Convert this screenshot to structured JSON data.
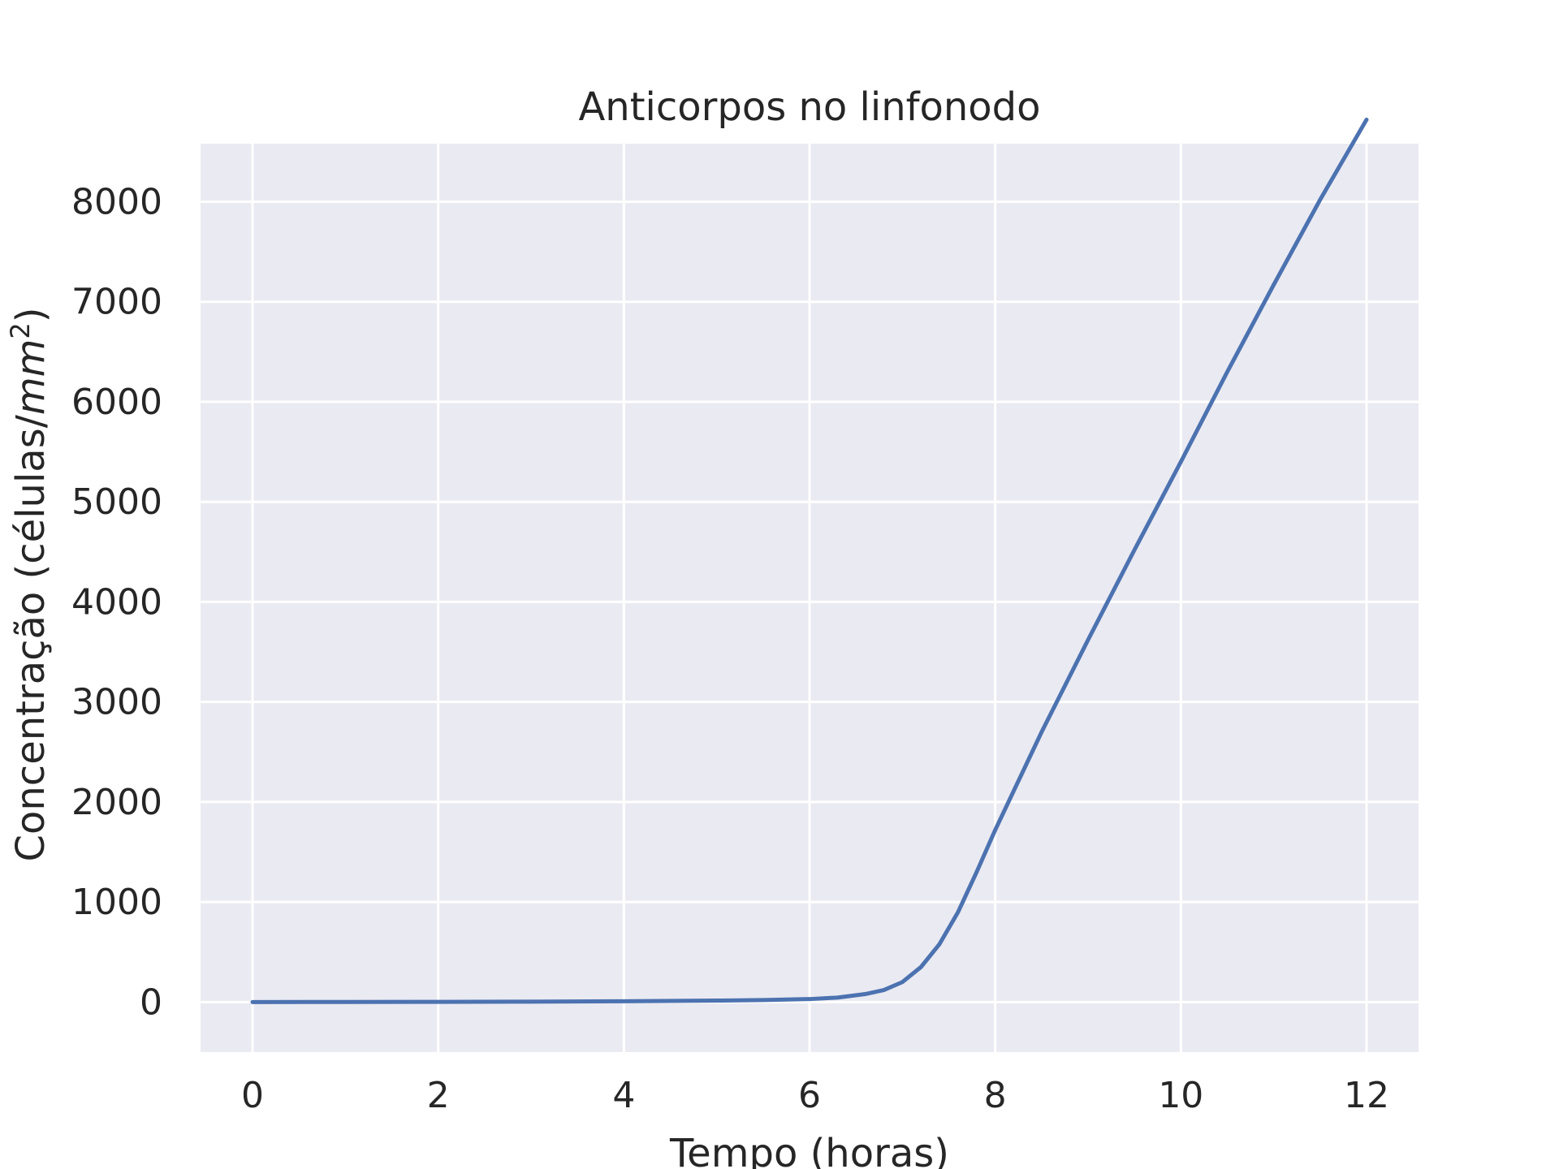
{
  "chart_data": {
    "type": "line",
    "title": "Anticorpos no linfonodo",
    "xlabel": "Tempo (horas)",
    "ylabel_main": "Concentração (células/",
    "ylabel_unit": "mm",
    "ylabel_sup": "2",
    "ylabel_close": ")",
    "xlim": [
      -0.56,
      12.56
    ],
    "ylim": [
      -500,
      8580
    ],
    "xticks": [
      0,
      2,
      4,
      6,
      8,
      10,
      12
    ],
    "yticks": [
      0,
      1000,
      2000,
      3000,
      4000,
      5000,
      6000,
      7000,
      8000
    ],
    "grid": true,
    "background_color": "#eaeaf2",
    "grid_color": "#ffffff",
    "series": [
      {
        "color": "#4c72b0",
        "x": [
          0,
          1,
          2,
          3,
          4,
          5,
          5.5,
          6,
          6.3,
          6.6,
          6.8,
          7.0,
          7.2,
          7.4,
          7.6,
          7.8,
          8.0,
          8.5,
          9.0,
          9.5,
          10.0,
          10.5,
          11.0,
          11.5,
          12.0
        ],
        "y": [
          0,
          1,
          2,
          4,
          8,
          15,
          20,
          30,
          45,
          80,
          120,
          200,
          350,
          580,
          900,
          1300,
          1720,
          2700,
          3620,
          4520,
          5400,
          6300,
          7170,
          8020,
          8820
        ]
      }
    ]
  }
}
